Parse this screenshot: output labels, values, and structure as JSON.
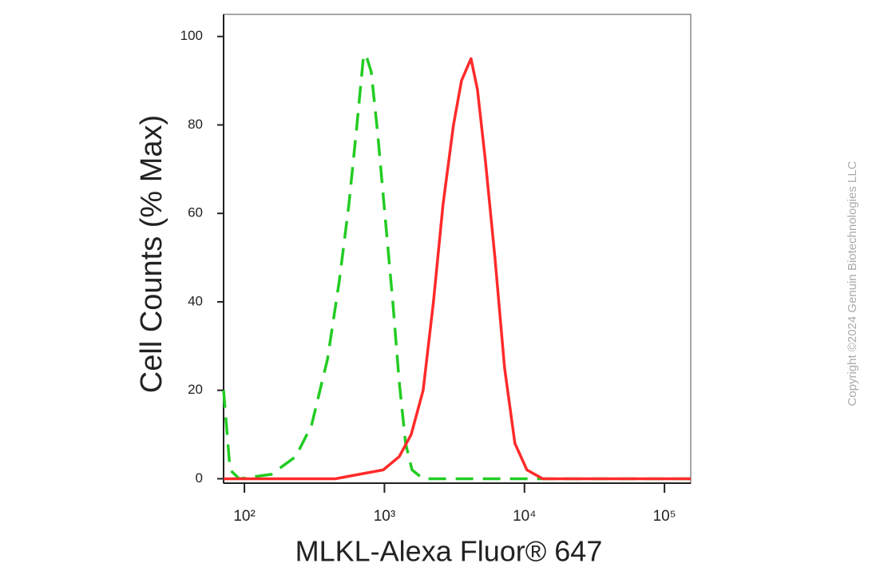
{
  "chart_data": {
    "type": "line",
    "xlabel": "MLKL-Alexa Fluor® 647",
    "ylabel": "Cell Counts (% Max)",
    "watermark": "Copyright ©2024 Genuin Biotechnologies LLC",
    "xscale": "log",
    "xlim": [
      71,
      154000
    ],
    "ylim": [
      -1,
      105
    ],
    "xticks": [
      {
        "value": 100,
        "label": "10²"
      },
      {
        "value": 1000,
        "label": "10³"
      },
      {
        "value": 10000,
        "label": "10⁴"
      },
      {
        "value": 100000,
        "label": "10⁵"
      }
    ],
    "yticks": [
      0,
      20,
      40,
      60,
      80,
      100
    ],
    "series": [
      {
        "color": "#22cc22",
        "line_style": "dashed",
        "x": [
          71,
          79,
          92,
          156,
          232,
          301,
          392,
          477,
          557,
          636,
          706,
          735,
          805,
          895,
          1020,
          1148,
          1274,
          1416,
          1574,
          1890,
          4730,
          154000
        ],
        "values": [
          20,
          2,
          0,
          1,
          5,
          12,
          27,
          45,
          62,
          80,
          95,
          96,
          92,
          78,
          58,
          40,
          22,
          8,
          2,
          0,
          0,
          0
        ]
      },
      {
        "color": "#ff2a2a",
        "line_style": "solid",
        "x": [
          71,
          446,
          662,
          980,
          1274,
          1552,
          1890,
          2240,
          2622,
          3113,
          3548,
          4150,
          4613,
          5260,
          6156,
          7210,
          8550,
          10400,
          13520,
          154000
        ],
        "values": [
          0,
          0,
          1,
          2,
          5,
          10,
          20,
          40,
          62,
          80,
          90,
          95,
          88,
          72,
          50,
          25,
          8,
          2,
          0,
          0
        ]
      }
    ]
  }
}
